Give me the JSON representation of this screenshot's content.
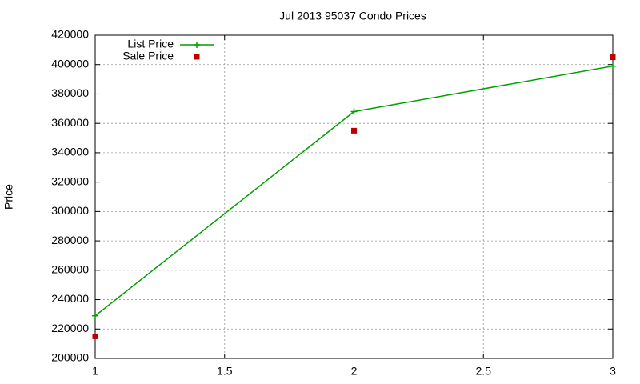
{
  "chart_data": {
    "type": "line",
    "title": "Jul 2013 95037 Condo Prices",
    "y_label": "Price",
    "x": [
      1,
      2,
      3
    ],
    "series": [
      {
        "name": "List Price",
        "color": "#00a000",
        "values": [
          229000,
          368000,
          399000
        ],
        "line": true,
        "marker": "plus"
      },
      {
        "name": "Sale Price",
        "color": "#c00000",
        "values": [
          215000,
          355000,
          405000
        ],
        "line": false,
        "marker": "square"
      }
    ],
    "xlim": [
      1,
      3
    ],
    "xticks": [
      1,
      1.5,
      2,
      2.5,
      3
    ],
    "ylim": [
      200000,
      420000
    ],
    "yticks": [
      200000,
      220000,
      240000,
      260000,
      280000,
      300000,
      320000,
      340000,
      360000,
      380000,
      400000,
      420000
    ],
    "grid": true,
    "legend": "top-left"
  }
}
